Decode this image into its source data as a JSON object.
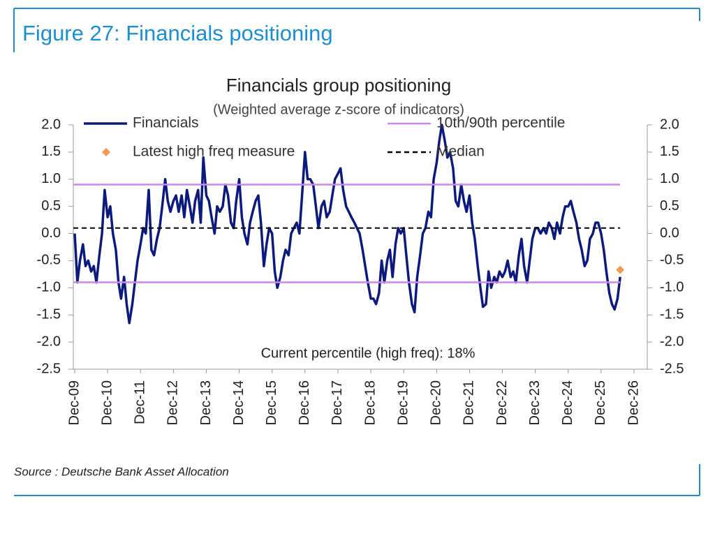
{
  "figure_title": "Figure 27: Financials positioning",
  "source": "Source : Deutsche Bank Asset Allocation",
  "chart_data": {
    "type": "line",
    "title": "Financials group positioning",
    "subtitle": "(Weighted average z-score of indicators)",
    "annotation": "Current percentile (high freq): 18%",
    "xlim": [
      2009.92,
      2026.92
    ],
    "xticks": [
      {
        "value": 2009.92,
        "label": "Dec-09"
      },
      {
        "value": 2010.92,
        "label": "Dec-10"
      },
      {
        "value": 2011.92,
        "label": "Dec-11"
      },
      {
        "value": 2012.92,
        "label": "Dec-12"
      },
      {
        "value": 2013.92,
        "label": "Dec-13"
      },
      {
        "value": 2014.92,
        "label": "Dec-14"
      },
      {
        "value": 2015.92,
        "label": "Dec-15"
      },
      {
        "value": 2016.92,
        "label": "Dec-16"
      },
      {
        "value": 2017.92,
        "label": "Dec-17"
      },
      {
        "value": 2018.92,
        "label": "Dec-18"
      },
      {
        "value": 2019.92,
        "label": "Dec-19"
      },
      {
        "value": 2020.92,
        "label": "Dec-20"
      },
      {
        "value": 2021.92,
        "label": "Dec-21"
      },
      {
        "value": 2022.92,
        "label": "Dec-22"
      },
      {
        "value": 2023.92,
        "label": "Dec-23"
      },
      {
        "value": 2024.92,
        "label": "Dec-24"
      },
      {
        "value": 2025.92,
        "label": "Dec-25"
      },
      {
        "value": 2026.92,
        "label": "Dec-26"
      }
    ],
    "ylim": [
      -2.5,
      2.0
    ],
    "yticks": [
      {
        "value": 2,
        "label": "2.0"
      },
      1.5,
      {
        "value": 1,
        "label": "1.0"
      },
      0.5,
      {
        "value": 0,
        "label": "0.0"
      },
      -0.5,
      {
        "value": -1,
        "label": "-1.0"
      },
      -1.5,
      {
        "value": -2,
        "label": "-2.0"
      },
      -2.5
    ],
    "y2lim": [
      -2.5,
      2.0
    ],
    "y2ticks": [
      {
        "value": 2,
        "label": "2.0"
      },
      1.5,
      {
        "value": 1,
        "label": "1.0"
      },
      0.5,
      {
        "value": 0,
        "label": "0.0"
      },
      -0.5,
      {
        "value": -1,
        "label": "-1.0"
      },
      -1.5,
      {
        "value": -2,
        "label": "-2.0"
      },
      -2.5
    ],
    "grid": false,
    "series": [
      {
        "name": "Financials",
        "color": "#0c1a80",
        "kind": "line",
        "x": [
          2009.92,
          2010.0,
          2010.08,
          2010.17,
          2010.25,
          2010.33,
          2010.42,
          2010.5,
          2010.58,
          2010.67,
          2010.75,
          2010.83,
          2010.92,
          2011.0,
          2011.08,
          2011.17,
          2011.25,
          2011.33,
          2011.42,
          2011.5,
          2011.58,
          2011.67,
          2011.75,
          2011.83,
          2011.92,
          2012.0,
          2012.08,
          2012.17,
          2012.25,
          2012.33,
          2012.42,
          2012.5,
          2012.58,
          2012.67,
          2012.75,
          2012.83,
          2012.92,
          2013.0,
          2013.08,
          2013.17,
          2013.25,
          2013.33,
          2013.42,
          2013.5,
          2013.58,
          2013.67,
          2013.75,
          2013.83,
          2013.92,
          2014.0,
          2014.08,
          2014.17,
          2014.25,
          2014.33,
          2014.42,
          2014.5,
          2014.58,
          2014.67,
          2014.75,
          2014.83,
          2014.92,
          2015.0,
          2015.08,
          2015.17,
          2015.25,
          2015.33,
          2015.42,
          2015.5,
          2015.58,
          2015.67,
          2015.75,
          2015.83,
          2015.92,
          2016.0,
          2016.08,
          2016.17,
          2016.25,
          2016.33,
          2016.42,
          2016.5,
          2016.58,
          2016.67,
          2016.75,
          2016.83,
          2016.92,
          2017.0,
          2017.08,
          2017.17,
          2017.25,
          2017.33,
          2017.42,
          2017.5,
          2017.58,
          2017.67,
          2017.75,
          2017.83,
          2017.92,
          2018.0,
          2018.08,
          2018.17,
          2018.25,
          2018.33,
          2018.42,
          2018.5,
          2018.58,
          2018.67,
          2018.75,
          2018.83,
          2018.92,
          2019.0,
          2019.08,
          2019.17,
          2019.25,
          2019.33,
          2019.42,
          2019.5,
          2019.58,
          2019.67,
          2019.75,
          2019.83,
          2019.92,
          2020.0,
          2020.08,
          2020.17,
          2020.25,
          2020.33,
          2020.42,
          2020.5,
          2020.58,
          2020.67,
          2020.75,
          2020.83,
          2020.92,
          2021.0,
          2021.08,
          2021.17,
          2021.25,
          2021.33,
          2021.42,
          2021.5,
          2021.58,
          2021.67,
          2021.75,
          2021.83,
          2021.92,
          2022.0,
          2022.08,
          2022.17,
          2022.25,
          2022.33,
          2022.42,
          2022.5,
          2022.58,
          2022.67,
          2022.75,
          2022.83,
          2022.92,
          2023.0,
          2023.08,
          2023.17,
          2023.25,
          2023.33,
          2023.42,
          2023.5,
          2023.58,
          2023.67,
          2023.75,
          2023.83,
          2023.92,
          2024.0,
          2024.08,
          2024.17,
          2024.25,
          2024.33,
          2024.42,
          2024.5,
          2024.58,
          2024.67,
          2024.75,
          2024.83,
          2024.92,
          2025.0,
          2025.08,
          2025.17,
          2025.25,
          2025.33,
          2025.42,
          2025.5,
          2025.58,
          2025.67,
          2025.75,
          2025.83,
          2025.92,
          2026.0,
          2026.08,
          2026.17,
          2026.25,
          2026.33,
          2026.42,
          2026.5
        ],
        "values": [
          0,
          -0.9,
          -0.5,
          -0.2,
          -0.6,
          -0.5,
          -0.7,
          -0.6,
          -0.9,
          -0.4,
          0,
          0.8,
          0.3,
          0.5,
          0,
          -0.3,
          -0.9,
          -1.2,
          -0.8,
          -1.3,
          -1.65,
          -1.3,
          -0.9,
          -0.5,
          -0.2,
          0.1,
          0,
          0.8,
          -0.3,
          -0.4,
          -0.1,
          0.1,
          0.5,
          1.0,
          0.6,
          0.4,
          0.6,
          0.7,
          0.4,
          0.7,
          0.3,
          0.8,
          0.5,
          0.2,
          0.6,
          0.8,
          0.2,
          1.4,
          0.7,
          0.6,
          0.3,
          0,
          0.5,
          0.4,
          0.5,
          0.9,
          0.7,
          0.2,
          0.1,
          0.6,
          1.0,
          0.3,
          0,
          -0.2,
          0.2,
          0.4,
          0.6,
          0.7,
          0.2,
          -0.6,
          -0.2,
          0.1,
          0,
          -0.7,
          -1.0,
          -0.8,
          -0.5,
          -0.3,
          -0.4,
          0,
          0.1,
          0.2,
          0,
          0.7,
          1.5,
          1.0,
          1.0,
          0.9,
          0.5,
          0.1,
          0.5,
          0.6,
          0.3,
          0.4,
          0.7,
          1.0,
          1.1,
          1.2,
          0.8,
          0.5,
          0.4,
          0.3,
          0.2,
          0.1,
          0,
          -0.3,
          -0.6,
          -0.9,
          -1.2,
          -1.2,
          -1.3,
          -1.1,
          -0.5,
          -0.9,
          -0.5,
          -0.3,
          -0.8,
          -0.2,
          0.1,
          0,
          0.1,
          -0.4,
          -0.9,
          -1.3,
          -1.45,
          -0.8,
          -0.4,
          0,
          0.1,
          0.4,
          0.3,
          1.0,
          1.3,
          1.7,
          2.0,
          1.7,
          1.4,
          1.5,
          1.2,
          0.6,
          0.5,
          0.9,
          0.6,
          0.4,
          0.7,
          0.2,
          -0.1,
          -0.6,
          -1.0,
          -1.35,
          -1.3,
          -0.7,
          -1.0,
          -0.8,
          -0.9,
          -0.7,
          -0.8,
          -0.7,
          -0.5,
          -0.8,
          -0.7,
          -0.9,
          -0.4,
          -0.1,
          -0.6,
          -0.9,
          -0.5,
          -0.1,
          0.1,
          0.1,
          0,
          0.1,
          0,
          0.2,
          0.1,
          -0.1,
          0.2,
          0,
          0.3,
          0.5,
          0.5,
          0.6,
          0.4,
          0.2,
          -0.1,
          -0.3,
          -0.6,
          -0.5,
          -0.1,
          0,
          0.2,
          0.2,
          0,
          -0.3,
          -0.7,
          -1.1,
          -1.3,
          -1.4,
          -1.2,
          -0.8
        ]
      },
      {
        "name": "10th/90th percentile",
        "color": "#cc88ee",
        "kind": "hline",
        "values": [
          0.9,
          -0.9
        ]
      },
      {
        "name": "Latest high freq measure",
        "color": "#f59a4a",
        "kind": "point",
        "x": [
          2026.5
        ],
        "values": [
          -0.67
        ]
      },
      {
        "name": "Median",
        "color": "#000000",
        "kind": "hline",
        "dashed": true,
        "values": [
          0.1
        ]
      }
    ]
  }
}
